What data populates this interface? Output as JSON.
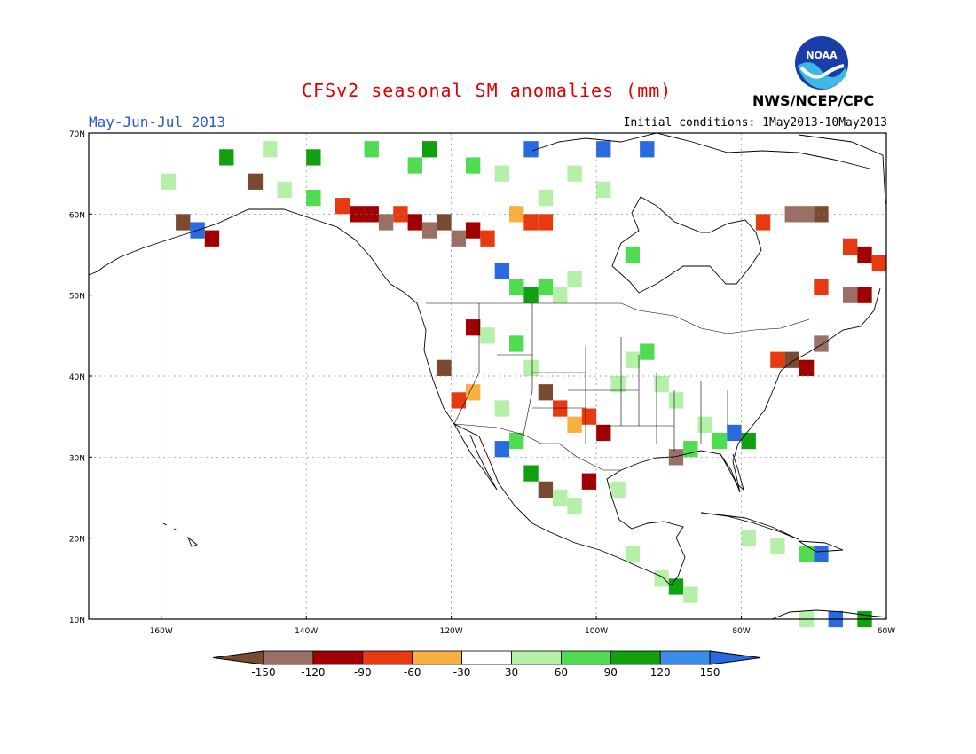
{
  "header": {
    "title": "CFSv2 seasonal SM anomalies (mm)",
    "period": "May-Jun-Jul 2013",
    "initial_conditions": "Initial conditions: 1May2013-10May2013",
    "agency": "NWS/NCEP/CPC",
    "logo_text": "NOAA"
  },
  "map": {
    "lat_labels": [
      "70N",
      "60N",
      "50N",
      "40N",
      "30N",
      "20N",
      "10N"
    ],
    "lon_labels": [
      "160W",
      "140W",
      "120W",
      "100W",
      "80W",
      "60W"
    ]
  },
  "legend": {
    "tick_labels": [
      "-150",
      "-120",
      "-90",
      "-60",
      "-30",
      "30",
      "60",
      "90",
      "120",
      "150"
    ],
    "colors": [
      "#7a4a30",
      "#9a7066",
      "#a00000",
      "#e83a10",
      "#f8b040",
      "#ffffff",
      "#b4f0a8",
      "#50dc50",
      "#10a010",
      "#3a8ce8",
      "#2a6ae0"
    ]
  },
  "anomaly_cells": [
    {
      "lon": -148,
      "lat": 65,
      "v": -150
    },
    {
      "lon": -144,
      "lat": 64,
      "v": 60
    },
    {
      "lon": -140,
      "lat": 63,
      "v": 90
    },
    {
      "lon": -136,
      "lat": 62,
      "v": -60
    },
    {
      "lon": -134,
      "lat": 61,
      "v": -90
    },
    {
      "lon": -132,
      "lat": 61,
      "v": -90
    },
    {
      "lon": -130,
      "lat": 60,
      "v": -120
    },
    {
      "lon": -128,
      "lat": 61,
      "v": -60
    },
    {
      "lon": -126,
      "lat": 60,
      "v": -90
    },
    {
      "lon": -124,
      "lat": 59,
      "v": -120
    },
    {
      "lon": -122,
      "lat": 60,
      "v": -150
    },
    {
      "lon": -120,
      "lat": 58,
      "v": -120
    },
    {
      "lon": -118,
      "lat": 59,
      "v": -90
    },
    {
      "lon": -116,
      "lat": 58,
      "v": -60
    },
    {
      "lon": -112,
      "lat": 61,
      "v": -30
    },
    {
      "lon": -110,
      "lat": 60,
      "v": -60
    },
    {
      "lon": -108,
      "lat": 60,
      "v": -60
    },
    {
      "lon": -114,
      "lat": 66,
      "v": 60
    },
    {
      "lon": -118,
      "lat": 67,
      "v": 90
    },
    {
      "lon": -124,
      "lat": 69,
      "v": 120
    },
    {
      "lon": -110,
      "lat": 69,
      "v": 150
    },
    {
      "lon": -104,
      "lat": 66,
      "v": 60
    },
    {
      "lon": -100,
      "lat": 64,
      "v": 60
    },
    {
      "lon": -96,
      "lat": 56,
      "v": 90
    },
    {
      "lon": -112,
      "lat": 52,
      "v": 90
    },
    {
      "lon": -110,
      "lat": 51,
      "v": 120
    },
    {
      "lon": -108,
      "lat": 52,
      "v": 90
    },
    {
      "lon": -106,
      "lat": 51,
      "v": 60
    },
    {
      "lon": -114,
      "lat": 54,
      "v": 150
    },
    {
      "lon": -104,
      "lat": 53,
      "v": 60
    },
    {
      "lon": -118,
      "lat": 47,
      "v": -90
    },
    {
      "lon": -116,
      "lat": 46,
      "v": 60
    },
    {
      "lon": -112,
      "lat": 45,
      "v": 90
    },
    {
      "lon": -110,
      "lat": 42,
      "v": 60
    },
    {
      "lon": -108,
      "lat": 39,
      "v": -150
    },
    {
      "lon": -106,
      "lat": 37,
      "v": -60
    },
    {
      "lon": -104,
      "lat": 35,
      "v": -30
    },
    {
      "lon": -102,
      "lat": 36,
      "v": -60
    },
    {
      "lon": -100,
      "lat": 34,
      "v": -90
    },
    {
      "lon": -98,
      "lat": 40,
      "v": 60
    },
    {
      "lon": -96,
      "lat": 43,
      "v": 60
    },
    {
      "lon": -94,
      "lat": 44,
      "v": 90
    },
    {
      "lon": -92,
      "lat": 40,
      "v": 60
    },
    {
      "lon": -90,
      "lat": 38,
      "v": 60
    },
    {
      "lon": -86,
      "lat": 35,
      "v": 60
    },
    {
      "lon": -84,
      "lat": 33,
      "v": 90
    },
    {
      "lon": -82,
      "lat": 34,
      "v": 150
    },
    {
      "lon": -80,
      "lat": 33,
      "v": 120
    },
    {
      "lon": -90,
      "lat": 31,
      "v": -120
    },
    {
      "lon": -88,
      "lat": 32,
      "v": 90
    },
    {
      "lon": -112,
      "lat": 33,
      "v": 90
    },
    {
      "lon": -114,
      "lat": 32,
      "v": 150
    },
    {
      "lon": -110,
      "lat": 29,
      "v": 120
    },
    {
      "lon": -108,
      "lat": 27,
      "v": -150
    },
    {
      "lon": -106,
      "lat": 26,
      "v": 60
    },
    {
      "lon": -104,
      "lat": 25,
      "v": 60
    },
    {
      "lon": -102,
      "lat": 28,
      "v": -90
    },
    {
      "lon": -98,
      "lat": 27,
      "v": 60
    },
    {
      "lon": -118,
      "lat": 39,
      "v": -30
    },
    {
      "lon": -120,
      "lat": 38,
      "v": -60
    },
    {
      "lon": -122,
      "lat": 42,
      "v": -150
    },
    {
      "lon": -114,
      "lat": 37,
      "v": 60
    },
    {
      "lon": -100,
      "lat": 22,
      "v": 30
    },
    {
      "lon": -96,
      "lat": 19,
      "v": 60
    },
    {
      "lon": -92,
      "lat": 16,
      "v": 60
    },
    {
      "lon": -90,
      "lat": 15,
      "v": 120
    },
    {
      "lon": -88,
      "lat": 14,
      "v": 60
    },
    {
      "lon": -80,
      "lat": 21,
      "v": 60
    },
    {
      "lon": -76,
      "lat": 20,
      "v": 60
    },
    {
      "lon": -72,
      "lat": 19,
      "v": 90
    },
    {
      "lon": -70,
      "lat": 19,
      "v": 150
    },
    {
      "lon": -68,
      "lat": 11,
      "v": 150
    },
    {
      "lon": -64,
      "lat": 11,
      "v": 120
    },
    {
      "lon": -72,
      "lat": 11,
      "v": 60
    },
    {
      "lon": -78,
      "lat": 60,
      "v": -60
    },
    {
      "lon": -74,
      "lat": 61,
      "v": -120
    },
    {
      "lon": -72,
      "lat": 61,
      "v": -120
    },
    {
      "lon": -70,
      "lat": 61,
      "v": -150
    },
    {
      "lon": -66,
      "lat": 57,
      "v": -60
    },
    {
      "lon": -64,
      "lat": 56,
      "v": -90
    },
    {
      "lon": -62,
      "lat": 55,
      "v": -60
    },
    {
      "lon": -70,
      "lat": 52,
      "v": -60
    },
    {
      "lon": -66,
      "lat": 51,
      "v": -120
    },
    {
      "lon": -64,
      "lat": 51,
      "v": -90
    },
    {
      "lon": -72,
      "lat": 42,
      "v": -90
    },
    {
      "lon": -74,
      "lat": 43,
      "v": -150
    },
    {
      "lon": -76,
      "lat": 43,
      "v": -60
    },
    {
      "lon": -70,
      "lat": 45,
      "v": -120
    },
    {
      "lon": -158,
      "lat": 60,
      "v": -150
    },
    {
      "lon": -154,
      "lat": 58,
      "v": -90
    },
    {
      "lon": -156,
      "lat": 59,
      "v": 150
    },
    {
      "lon": -160,
      "lat": 65,
      "v": 60
    },
    {
      "lon": -152,
      "lat": 68,
      "v": 120
    },
    {
      "lon": -146,
      "lat": 69,
      "v": 60
    },
    {
      "lon": -140,
      "lat": 68,
      "v": 120
    },
    {
      "lon": -132,
      "lat": 69,
      "v": 90
    },
    {
      "lon": -126,
      "lat": 67,
      "v": 90
    },
    {
      "lon": -94,
      "lat": 69,
      "v": 150
    },
    {
      "lon": -100,
      "lat": 69,
      "v": 150
    },
    {
      "lon": -108,
      "lat": 63,
      "v": 60
    }
  ]
}
